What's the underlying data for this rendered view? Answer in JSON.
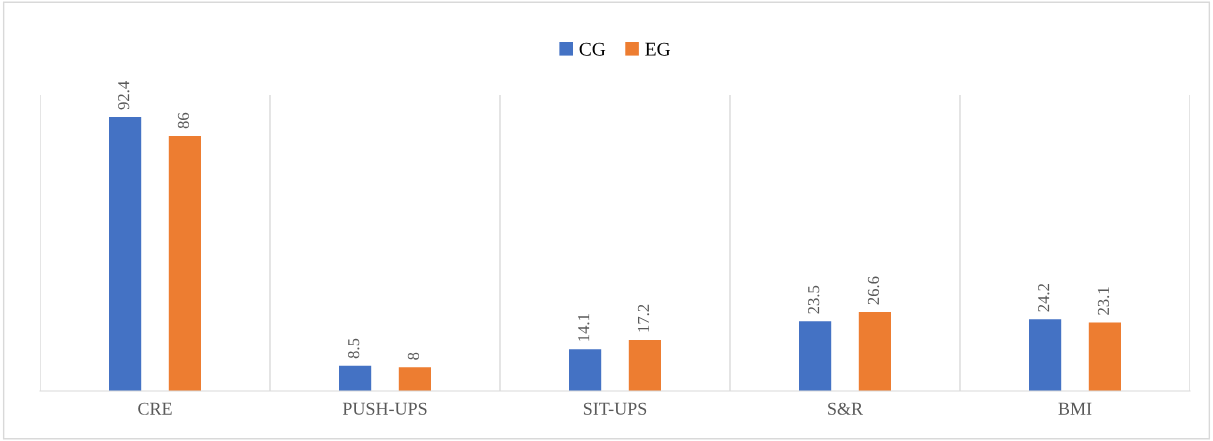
{
  "chart_data": {
    "type": "bar",
    "categories": [
      "CRE",
      "PUSH-UPS",
      "SIT-UPS",
      "S&R",
      "BMI"
    ],
    "series": [
      {
        "name": "CG",
        "color": "#4472c4",
        "values": [
          92.4,
          8.5,
          14.1,
          23.5,
          24.2
        ]
      },
      {
        "name": "EG",
        "color": "#ed7d31",
        "values": [
          86,
          8,
          17.2,
          26.6,
          23.1
        ]
      }
    ],
    "data_labels": true,
    "legend": "top",
    "grid": "x"
  }
}
